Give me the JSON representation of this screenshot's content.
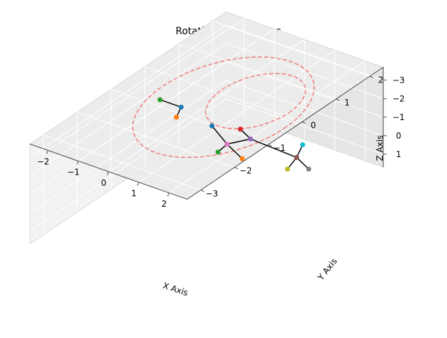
{
  "chart_data": {
    "type": "scatter3d",
    "title": "Rotation at 0 degrees",
    "xlabel": "X Axis",
    "ylabel": "Y Axis",
    "zlabel": "Z Axis",
    "xticks": [
      "−2",
      "−1",
      "0",
      "1",
      "2"
    ],
    "yticks": [
      "−3",
      "−2",
      "−1",
      "0",
      "1",
      "2"
    ],
    "zticks": [
      "−3",
      "−2",
      "−1",
      "0",
      "1"
    ],
    "grid": true,
    "colors": {
      "blue": "#1f77b4",
      "orange": "#ff7f0e",
      "green": "#2ca02c",
      "red": "#d62728",
      "purple": "#9467bd",
      "brown": "#8c564b",
      "pink": "#e377c2",
      "gray": "#7f7f7f",
      "olive": "#bcbd22",
      "cyan": "#17becf",
      "ring": "#f07c7c",
      "segment": "#000000"
    },
    "points": [
      {
        "id": "p-pink",
        "color": "pink",
        "x": -1.0,
        "y": 1.0,
        "z": 0.8
      },
      {
        "id": "p-green-top",
        "color": "green",
        "x": -1.3,
        "y": 1.0,
        "z": 1.4
      },
      {
        "id": "p-orange-top",
        "color": "orange",
        "x": -0.5,
        "y": 1.0,
        "z": 1.3
      },
      {
        "id": "p-blue-top",
        "color": "blue",
        "x": -1.5,
        "y": 1.0,
        "z": 0.1
      },
      {
        "id": "p-purple",
        "color": "purple",
        "x": 0.0,
        "y": 0.8,
        "z": -0.3
      },
      {
        "id": "p-red",
        "color": "red",
        "x": 0.0,
        "y": 0.5,
        "z": -1.2
      },
      {
        "id": "p-brown",
        "color": "brown",
        "x": 1.3,
        "y": 1.0,
        "z": 0.2
      },
      {
        "id": "p-olive",
        "color": "olive",
        "x": 1.0,
        "y": 1.0,
        "z": 1.0
      },
      {
        "id": "p-gray",
        "color": "gray",
        "x": 1.7,
        "y": 1.0,
        "z": 0.6
      },
      {
        "id": "p-cyan",
        "color": "cyan",
        "x": 1.5,
        "y": 1.0,
        "z": -0.6
      },
      {
        "id": "p-green-low",
        "color": "green",
        "x": -2.1,
        "y": 0.0,
        "z": -2.2
      },
      {
        "id": "p-blue-low",
        "color": "blue",
        "x": -1.4,
        "y": 0.0,
        "z": -2.2
      },
      {
        "id": "p-orange-low",
        "color": "orange",
        "x": -1.0,
        "y": -0.5,
        "z": -2.5
      }
    ],
    "segments": [
      [
        "p-pink",
        "p-green-top"
      ],
      [
        "p-pink",
        "p-orange-top"
      ],
      [
        "p-pink",
        "p-blue-top"
      ],
      [
        "p-pink",
        "p-purple"
      ],
      [
        "p-purple",
        "p-red"
      ],
      [
        "p-purple",
        "p-brown"
      ],
      [
        "p-brown",
        "p-olive"
      ],
      [
        "p-brown",
        "p-gray"
      ],
      [
        "p-brown",
        "p-cyan"
      ],
      [
        "p-green-low",
        "p-blue-low"
      ],
      [
        "p-blue-low",
        "p-orange-low"
      ]
    ],
    "rings": [
      {
        "id": "ring-outer",
        "cx": 0.0,
        "cy": 0.0,
        "z": -3.0,
        "r": 2.0
      },
      {
        "id": "ring-inner",
        "cx": 0.5,
        "cy": 0.5,
        "z": -3.0,
        "r": 1.1
      }
    ]
  }
}
